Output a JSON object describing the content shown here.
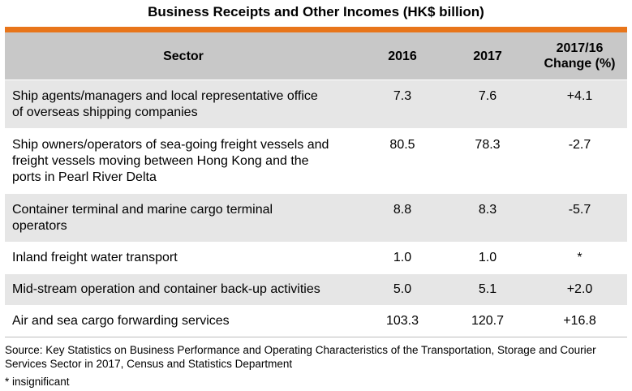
{
  "title": "Business Receipts and Other Incomes (HK$ billion)",
  "colors": {
    "accent_bar": "#e8751a",
    "header_bg": "#c8c8c8",
    "shaded_row_bg": "#e6e6e6"
  },
  "table": {
    "headers": {
      "sector": "Sector",
      "y2016": "2016",
      "y2017": "2017",
      "change_line1": "2017/16",
      "change_line2": "Change (%)"
    },
    "rows": [
      {
        "sector_lines": [
          "Ship agents/managers and local representative office",
          "of overseas shipping companies"
        ],
        "y2016": "7.3",
        "y2017": "7.6",
        "change": "+4.1"
      },
      {
        "sector_lines": [
          "Ship owners/operators of sea-going freight vessels and",
          "freight vessels moving between Hong Kong and the",
          "ports in Pearl River Delta"
        ],
        "y2016": "80.5",
        "y2017": "78.3",
        "change": "-2.7"
      },
      {
        "sector_lines": [
          "Container terminal and marine cargo terminal",
          "operators"
        ],
        "y2016": "8.8",
        "y2017": "8.3",
        "change": "-5.7"
      },
      {
        "sector_lines": [
          "Inland freight water transport"
        ],
        "y2016": "1.0",
        "y2017": "1.0",
        "change": "*"
      },
      {
        "sector_lines": [
          "Mid-stream operation and container back-up activities"
        ],
        "y2016": "5.0",
        "y2017": "5.1",
        "change": "+2.0"
      },
      {
        "sector_lines": [
          "Air and sea cargo forwarding services"
        ],
        "y2016": "103.3",
        "y2017": "120.7",
        "change": "+16.8"
      }
    ]
  },
  "source_lines": [
    "Source: Key Statistics on Business Performance and Operating Characteristics of the Transportation, Storage and Courier",
    "Services Sector in 2017, Census and Statistics Department"
  ],
  "note": "* insignificant"
}
